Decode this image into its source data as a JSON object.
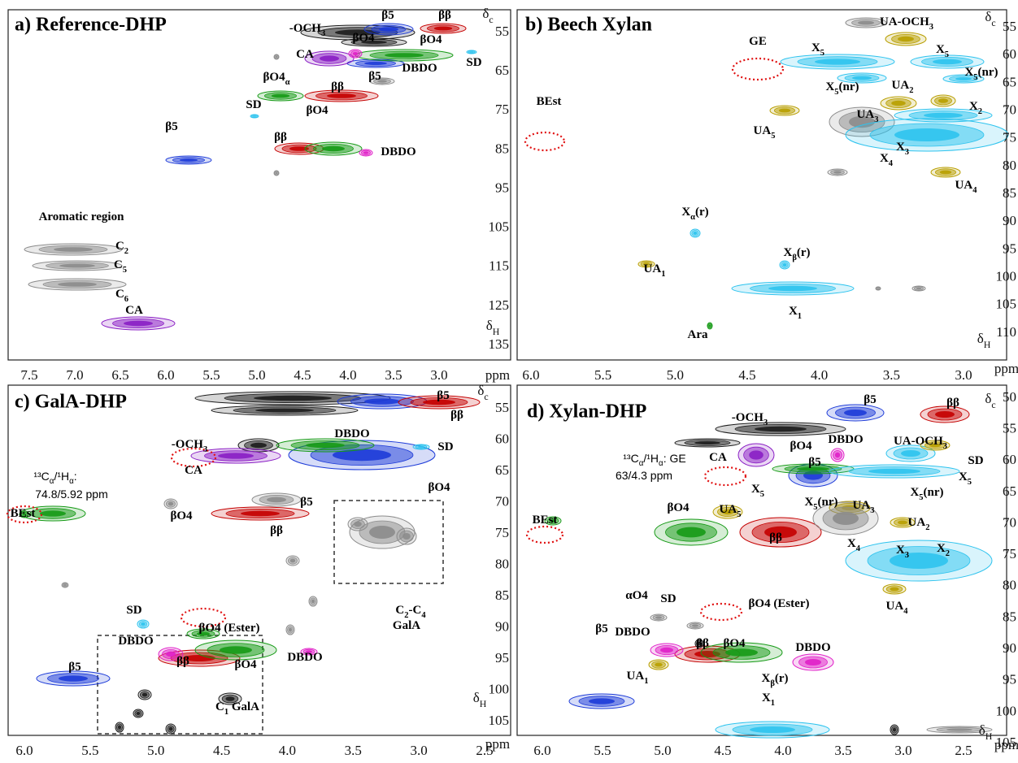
{
  "panels": [
    {
      "title": "a) Reference-DHP",
      "x_ticks": [
        "7.5",
        "7.0",
        "6.5",
        "6.0",
        "5.5",
        "5.0",
        "4.5",
        "4.0",
        "3.5",
        "3.0"
      ],
      "x_unit": "ppm",
      "y_ticks": [
        "55",
        "65",
        "75",
        "85",
        "95",
        "105",
        "115",
        "125",
        "135"
      ],
      "axis_c": [
        "δ",
        {
          "sub": "c"
        }
      ],
      "axis_h": [
        "δ",
        {
          "sub": "H"
        }
      ],
      "labels": [
        [
          "-OCH",
          {
            "sub": "3"
          }
        ],
        [
          "β5"
        ],
        [
          "ββ"
        ],
        [
          "βO4"
        ],
        [
          "βO4"
        ],
        [
          "CA"
        ],
        [
          "β5"
        ],
        [
          "DBDO"
        ],
        [
          "SD"
        ],
        [
          "βO4",
          {
            "sub": "α"
          }
        ],
        [
          "ββ"
        ],
        [
          "SD"
        ],
        [
          "βO4"
        ],
        [
          "β5"
        ],
        [
          "ββ"
        ],
        [
          "DBDO"
        ],
        [
          "Aromatic region"
        ],
        [
          "C",
          {
            "sub": "2"
          }
        ],
        [
          "C",
          {
            "sub": "5"
          }
        ],
        [
          "C",
          {
            "sub": "6"
          }
        ],
        [
          "CA"
        ]
      ]
    },
    {
      "title": "b) Beech Xylan",
      "x_ticks": [
        "6.0",
        "5.5",
        "5.0",
        "4.5",
        "4.0",
        "3.5",
        "3.0"
      ],
      "x_unit": "ppm",
      "y_ticks": [
        "55",
        "60",
        "65",
        "70",
        "75",
        "80",
        "85",
        "90",
        "95",
        "100",
        "105",
        "110"
      ],
      "axis_c": [
        "δ",
        {
          "sub": "c"
        }
      ],
      "axis_h": [
        "δ",
        {
          "sub": "H"
        }
      ],
      "labels": [
        [
          "GE"
        ],
        [
          "X",
          {
            "sub": "5"
          }
        ],
        [
          "UA-OCH",
          {
            "sub": "3"
          }
        ],
        [
          "X",
          {
            "sub": "5"
          }
        ],
        [
          "X",
          {
            "sub": "5"
          },
          "(nr)"
        ],
        [
          "X",
          {
            "sub": "5"
          },
          "(nr)"
        ],
        [
          "UA",
          {
            "sub": "2"
          }
        ],
        [
          "X",
          {
            "sub": "2"
          }
        ],
        [
          "BEst"
        ],
        [
          "UA",
          {
            "sub": "3"
          }
        ],
        [
          "UA",
          {
            "sub": "5"
          }
        ],
        [
          "X",
          {
            "sub": "3"
          }
        ],
        [
          "X",
          {
            "sub": "4"
          }
        ],
        [
          "UA",
          {
            "sub": "4"
          }
        ],
        [
          "X",
          {
            "sub": "α"
          },
          "(r)"
        ],
        [
          "X",
          {
            "sub": "β"
          },
          "(r)"
        ],
        [
          "UA",
          {
            "sub": "1"
          }
        ],
        [
          "X",
          {
            "sub": "1"
          }
        ],
        [
          "Ara"
        ]
      ]
    },
    {
      "title": "c) GalA-DHP",
      "x_ticks": [
        "6.0",
        "5.5",
        "5.0",
        "4.5",
        "4.0",
        "3.5",
        "3.0",
        "2.5"
      ],
      "x_unit": "ppm",
      "y_ticks": [
        "55",
        "60",
        "65",
        "70",
        "75",
        "80",
        "85",
        "90",
        "95",
        "100",
        "105"
      ],
      "axis_c": [
        "δ",
        {
          "sub": "c"
        }
      ],
      "axis_h": [
        "δ",
        {
          "sub": "H"
        }
      ],
      "labels": [
        [
          "β5"
        ],
        [
          "-OCH",
          {
            "sub": "3"
          }
        ],
        [
          "ββ"
        ],
        [
          "DBDO"
        ],
        [
          "SD"
        ],
        [
          "CA"
        ],
        [
          "βO4"
        ],
        [
          "¹³C",
          {
            "sub": "α"
          },
          "/¹H",
          {
            "sub": "α"
          },
          ":"
        ],
        [
          "74.8/5.92 ppm"
        ],
        [
          "βO4"
        ],
        [
          "β5"
        ],
        [
          "BEst"
        ],
        [
          "ββ"
        ],
        [
          "C",
          {
            "sub": "2"
          },
          "-C",
          {
            "sub": "4"
          }
        ],
        [
          "GalA"
        ],
        [
          "SD"
        ],
        [
          "βO4 (Ester)"
        ],
        [
          "DBDO"
        ],
        [
          "DBDO"
        ],
        [
          "β5"
        ],
        [
          "ββ"
        ],
        [
          "βO4"
        ],
        [
          "C",
          {
            "sub": "1"
          },
          " GalA"
        ]
      ]
    },
    {
      "title": "d) Xylan-DHP",
      "x_ticks": [
        "6.0",
        "5.5",
        "5.0",
        "4.5",
        "4.0",
        "3.5",
        "3.0",
        "2.5"
      ],
      "x_unit": "ppm",
      "y_ticks": [
        "50",
        "55",
        "60",
        "65",
        "70",
        "75",
        "80",
        "85",
        "90",
        "95",
        "100",
        "105"
      ],
      "axis_c": [
        "δ",
        {
          "sub": "c"
        }
      ],
      "axis_h": [
        "δ",
        {
          "sub": "H"
        }
      ],
      "labels": [
        [
          "β5"
        ],
        [
          "ββ"
        ],
        [
          "-OCH",
          {
            "sub": "3"
          }
        ],
        [
          "DBDO"
        ],
        [
          "UA-OCH",
          {
            "sub": "3"
          }
        ],
        [
          "βO4"
        ],
        [
          "CA"
        ],
        [
          "¹³C",
          {
            "sub": "α"
          },
          "/¹H",
          {
            "sub": "α"
          },
          ": GE"
        ],
        [
          "63/4.3  ppm"
        ],
        [
          "β5"
        ],
        [
          "SD"
        ],
        [
          "X",
          {
            "sub": "5"
          }
        ],
        [
          "X",
          {
            "sub": "5"
          }
        ],
        [
          "X",
          {
            "sub": "5"
          },
          "(nr)"
        ],
        [
          "X",
          {
            "sub": "5"
          },
          "(nr)"
        ],
        [
          "βO4"
        ],
        [
          "UA",
          {
            "sub": "5"
          }
        ],
        [
          "UA",
          {
            "sub": "3"
          }
        ],
        [
          "UA",
          {
            "sub": "2"
          }
        ],
        [
          "BEst"
        ],
        [
          "ββ"
        ],
        [
          "X",
          {
            "sub": "3"
          }
        ],
        [
          "X",
          {
            "sub": "4"
          }
        ],
        [
          "X",
          {
            "sub": "2"
          }
        ],
        [
          "αO4"
        ],
        [
          "SD"
        ],
        [
          "βO4 (Ester)"
        ],
        [
          "UA",
          {
            "sub": "4"
          }
        ],
        [
          "β5"
        ],
        [
          "DBDO"
        ],
        [
          "ββ"
        ],
        [
          "βO4"
        ],
        [
          "DBDO"
        ],
        [
          "UA",
          {
            "sub": "1"
          }
        ],
        [
          "X",
          {
            "sub": "β"
          },
          "(r)"
        ],
        [
          "X",
          {
            "sub": "1"
          }
        ]
      ]
    }
  ]
}
